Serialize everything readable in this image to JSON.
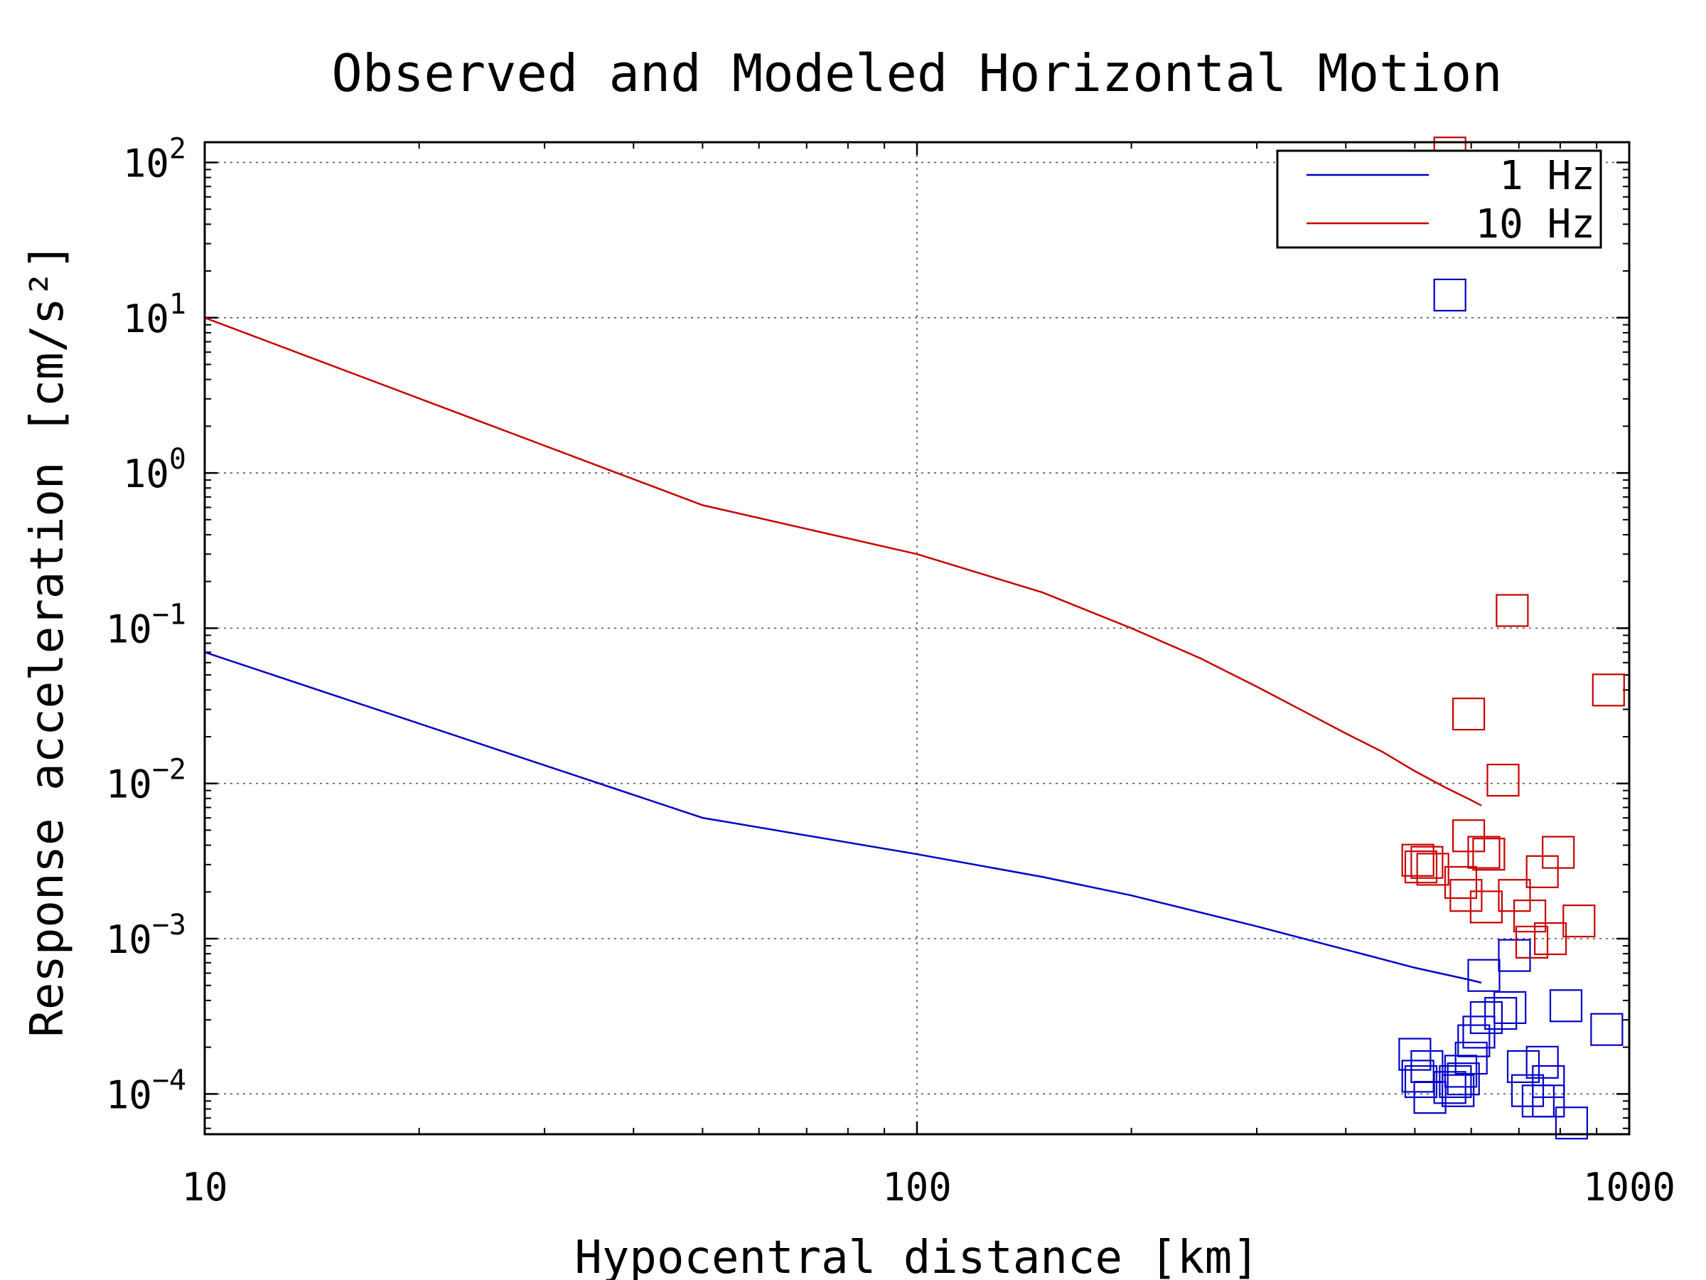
{
  "chart_data": {
    "type": "scatter",
    "title": "Observed and Modeled Horizontal Motion",
    "xlabel": "Hypocentral distance [km]",
    "ylabel": "Response acceleration [cm/s²]",
    "xscale": "log",
    "yscale": "log",
    "xlim": [
      10,
      1000
    ],
    "ylim": [
      5.5e-05,
      135
    ],
    "x_ticks": [
      {
        "value": 10,
        "label": "10"
      },
      {
        "value": 100,
        "label": "100"
      },
      {
        "value": 1000,
        "label": "1000"
      }
    ],
    "y_ticks": [
      {
        "value": 100,
        "base": "10",
        "exp": "2"
      },
      {
        "value": 10,
        "base": "10",
        "exp": "1"
      },
      {
        "value": 1,
        "base": "10",
        "exp": "0"
      },
      {
        "value": 0.1,
        "base": "10",
        "exp": "−1"
      },
      {
        "value": 0.01,
        "base": "10",
        "exp": "−2"
      },
      {
        "value": 0.001,
        "base": "10",
        "exp": "−3"
      },
      {
        "value": 0.0001,
        "base": "10",
        "exp": "−4"
      }
    ],
    "grid": true,
    "legend_position": "top-right",
    "legend": [
      {
        "label": "1 Hz",
        "color": "#0000c8"
      },
      {
        "label": "10 Hz",
        "color": "#c80000"
      }
    ],
    "series": [
      {
        "name": "1 Hz",
        "kind": "line",
        "color": "#0000c8",
        "x": [
          10,
          50,
          100,
          150,
          200,
          300,
          400,
          500,
          600,
          620
        ],
        "y": [
          0.07,
          0.006,
          0.0035,
          0.0025,
          0.0019,
          0.0012,
          0.00085,
          0.00065,
          0.00054,
          0.00052
        ]
      },
      {
        "name": "10 Hz",
        "kind": "line",
        "color": "#c80000",
        "x": [
          10,
          50,
          100,
          150,
          200,
          250,
          300,
          350,
          400,
          450,
          500,
          550,
          600,
          620
        ],
        "y": [
          10,
          0.62,
          0.3,
          0.17,
          0.1,
          0.064,
          0.042,
          0.029,
          0.021,
          0.016,
          0.012,
          0.0095,
          0.0078,
          0.0072
        ]
      },
      {
        "name": "1 Hz",
        "kind": "markers",
        "color": "#0000c8",
        "points": [
          [
            560,
            14
          ],
          [
            500,
            0.00018
          ],
          [
            505,
            0.00013
          ],
          [
            510,
            0.00012
          ],
          [
            520,
            0.00015
          ],
          [
            525,
            9.5e-05
          ],
          [
            560,
            0.00011
          ],
          [
            570,
            0.00012
          ],
          [
            575,
            0.000105
          ],
          [
            580,
            0.00014
          ],
          [
            585,
            0.000125
          ],
          [
            600,
            0.00017
          ],
          [
            605,
            0.00022
          ],
          [
            615,
            0.00025
          ],
          [
            630,
            0.00031
          ],
          [
            625,
            0.00058
          ],
          [
            660,
            0.00033
          ],
          [
            680,
            0.00036
          ],
          [
            690,
            0.00078
          ],
          [
            710,
            0.00015
          ],
          [
            720,
            0.000105
          ],
          [
            745,
            9e-05
          ],
          [
            755,
            0.00016
          ],
          [
            770,
            0.00012
          ],
          [
            770,
            9e-05
          ],
          [
            815,
            0.00037
          ],
          [
            830,
            6.5e-05
          ],
          [
            930,
            0.00026
          ]
        ]
      },
      {
        "name": "10 Hz",
        "kind": "markers",
        "color": "#c80000",
        "points": [
          [
            560,
            115
          ],
          [
            685,
            0.13
          ],
          [
            595,
            0.028
          ],
          [
            665,
            0.0105
          ],
          [
            935,
            0.04
          ],
          [
            595,
            0.0046
          ],
          [
            625,
            0.0036
          ],
          [
            635,
            0.0035
          ],
          [
            505,
            0.0032
          ],
          [
            510,
            0.0029
          ],
          [
            520,
            0.0031
          ],
          [
            530,
            0.0028
          ],
          [
            580,
            0.0023
          ],
          [
            590,
            0.0019
          ],
          [
            630,
            0.0016
          ],
          [
            690,
            0.0019
          ],
          [
            725,
            0.0014
          ],
          [
            730,
            0.00095
          ],
          [
            755,
            0.0027
          ],
          [
            775,
            0.001
          ],
          [
            795,
            0.0036
          ],
          [
            850,
            0.0013
          ]
        ]
      }
    ]
  }
}
